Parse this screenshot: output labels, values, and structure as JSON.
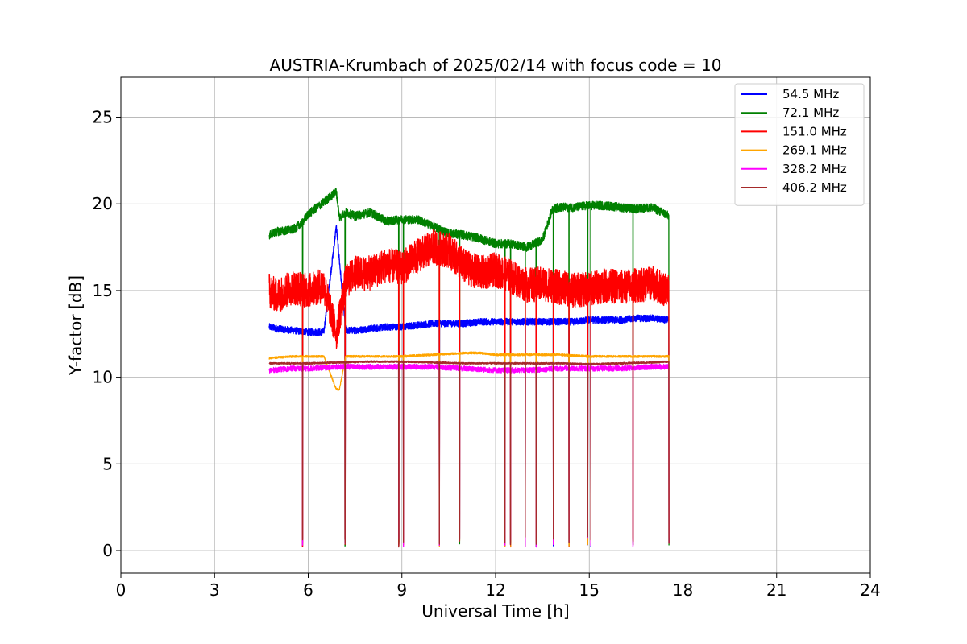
{
  "chart_data": {
    "type": "line",
    "title": "AUSTRIA-Krumbach of 2025/02/14 with focus code = 10",
    "xlabel": "Universal Time [h]",
    "ylabel": "Y-factor [dB]",
    "xlim": [
      0,
      24
    ],
    "ylim": [
      -1.3,
      27.3
    ],
    "xticks": [
      0,
      3,
      6,
      9,
      12,
      15,
      18,
      21,
      24
    ],
    "yticks": [
      0,
      5,
      10,
      15,
      20,
      25
    ],
    "grid": true,
    "legend_position": "top-right",
    "dropouts_x": [
      5.82,
      7.18,
      8.9,
      9.05,
      10.2,
      10.85,
      12.3,
      12.48,
      12.95,
      13.3,
      13.85,
      14.35,
      14.95,
      15.05,
      16.4,
      17.55
    ],
    "series": [
      {
        "name": "54.5 MHz",
        "color": "#0000ff",
        "x": [
          4.75,
          5.0,
          5.5,
          6.0,
          6.5,
          6.9,
          7.2,
          7.5,
          8.0,
          8.5,
          9.0,
          9.5,
          10.0,
          10.5,
          11.0,
          11.5,
          12.0,
          12.5,
          13.0,
          13.5,
          14.0,
          14.5,
          15.0,
          15.5,
          16.0,
          16.5,
          17.0,
          17.55
        ],
        "y": [
          12.9,
          12.8,
          12.7,
          12.6,
          12.6,
          18.7,
          12.7,
          12.7,
          12.8,
          12.9,
          12.9,
          13.0,
          13.1,
          13.1,
          13.1,
          13.2,
          13.2,
          13.2,
          13.2,
          13.2,
          13.2,
          13.2,
          13.3,
          13.3,
          13.3,
          13.4,
          13.4,
          13.3
        ],
        "noise": 0.2
      },
      {
        "name": "72.1 MHz",
        "color": "#008000",
        "x": [
          4.75,
          5.0,
          5.5,
          5.8,
          6.0,
          6.5,
          6.9,
          7.0,
          7.2,
          7.5,
          8.0,
          8.5,
          9.0,
          9.5,
          10.0,
          10.5,
          11.0,
          11.5,
          12.0,
          12.5,
          13.0,
          13.5,
          13.8,
          14.0,
          14.5,
          15.0,
          15.5,
          16.0,
          16.5,
          17.0,
          17.55
        ],
        "y": [
          18.2,
          18.4,
          18.5,
          18.9,
          19.4,
          20.1,
          20.7,
          19.2,
          19.5,
          19.3,
          19.5,
          19.0,
          19.1,
          19.1,
          18.7,
          18.3,
          18.2,
          18.0,
          17.7,
          17.7,
          17.5,
          17.9,
          19.6,
          19.8,
          19.8,
          19.9,
          19.9,
          19.8,
          19.7,
          19.8,
          19.3
        ],
        "noise": 0.25
      },
      {
        "name": "151.0 MHz",
        "color": "#ff0000",
        "x": [
          4.75,
          5.0,
          5.5,
          6.0,
          6.5,
          6.9,
          7.2,
          7.5,
          8.0,
          8.5,
          9.0,
          9.5,
          10.0,
          10.5,
          11.0,
          11.5,
          12.0,
          12.5,
          13.0,
          13.5,
          14.0,
          14.5,
          15.0,
          15.5,
          16.0,
          16.5,
          17.0,
          17.55
        ],
        "y": [
          15.0,
          14.7,
          15.2,
          15.0,
          15.3,
          12.5,
          15.5,
          16.0,
          16.0,
          16.5,
          16.3,
          17.0,
          17.5,
          17.3,
          16.4,
          16.0,
          16.2,
          15.8,
          15.3,
          15.4,
          15.2,
          15.0,
          15.1,
          15.3,
          15.2,
          15.3,
          15.4,
          15.0
        ],
        "noise": 1.0
      },
      {
        "name": "269.1 MHz",
        "color": "#ffa500",
        "x": [
          4.75,
          5.5,
          6.0,
          6.5,
          6.9,
          7.0,
          7.2,
          7.5,
          8.0,
          9.0,
          10.0,
          11.0,
          11.5,
          12.0,
          13.0,
          14.0,
          15.0,
          16.0,
          17.0,
          17.55
        ],
        "y": [
          11.1,
          11.2,
          11.2,
          11.2,
          9.3,
          9.3,
          11.2,
          11.2,
          11.2,
          11.2,
          11.3,
          11.4,
          11.4,
          11.3,
          11.3,
          11.3,
          11.2,
          11.2,
          11.2,
          11.2
        ],
        "noise": 0.06
      },
      {
        "name": "328.2 MHz",
        "color": "#ff00ff",
        "x": [
          4.75,
          5.5,
          6.0,
          7.0,
          8.0,
          9.0,
          10.0,
          11.0,
          12.0,
          13.0,
          14.0,
          15.0,
          16.0,
          17.0,
          17.55
        ],
        "y": [
          10.4,
          10.5,
          10.5,
          10.6,
          10.6,
          10.6,
          10.6,
          10.5,
          10.4,
          10.4,
          10.5,
          10.5,
          10.5,
          10.6,
          10.6
        ],
        "noise": 0.15
      },
      {
        "name": "406.2 MHz",
        "color": "#a52a2a",
        "x": [
          4.75,
          5.5,
          6.0,
          7.0,
          8.0,
          9.0,
          10.0,
          11.0,
          12.0,
          13.0,
          14.0,
          15.0,
          16.0,
          17.0,
          17.55
        ],
        "y": [
          10.8,
          10.8,
          10.8,
          10.85,
          10.9,
          10.9,
          10.85,
          10.8,
          10.8,
          10.8,
          10.8,
          10.75,
          10.8,
          10.85,
          10.9
        ],
        "noise": 0.05
      }
    ]
  }
}
